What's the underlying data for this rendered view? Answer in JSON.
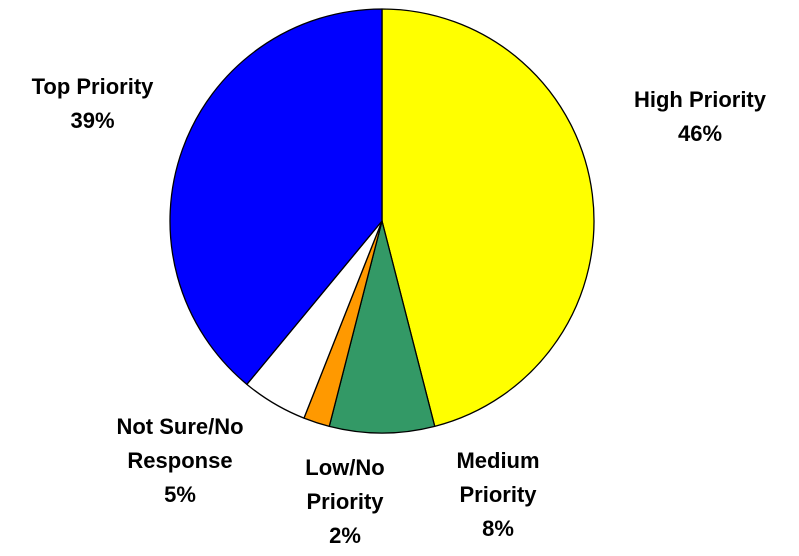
{
  "chart_data": {
    "type": "pie",
    "title": "",
    "start_angle_deg": 0,
    "direction": "clockwise",
    "slices": [
      {
        "key": "high",
        "label": "High Priority",
        "value": 46,
        "value_label": "46%",
        "color": "#ffff00"
      },
      {
        "key": "medium",
        "label": "Medium Priority",
        "value": 8,
        "value_label": "8%",
        "color": "#339966"
      },
      {
        "key": "low",
        "label": "Low/No Priority",
        "value": 2,
        "value_label": "2%",
        "color": "#ff9900"
      },
      {
        "key": "notsure",
        "label": "Not Sure/No Response",
        "value": 5,
        "value_label": "5%",
        "color": "#ffffff"
      },
      {
        "key": "top",
        "label": "Top Priority",
        "value": 39,
        "value_label": "39%",
        "color": "#0000ff"
      }
    ],
    "legend": "none",
    "labels": {
      "high": {
        "lines": [
          "High Priority",
          "46%"
        ]
      },
      "top": {
        "lines": [
          "Top Priority",
          "39%"
        ]
      },
      "medium": {
        "lines": [
          "Medium",
          "Priority",
          "8%"
        ]
      },
      "low": {
        "lines": [
          "Low/No",
          "Priority",
          "2%"
        ]
      },
      "notsure": {
        "lines": [
          "Not Sure/No",
          "Response",
          "5%"
        ]
      }
    }
  }
}
